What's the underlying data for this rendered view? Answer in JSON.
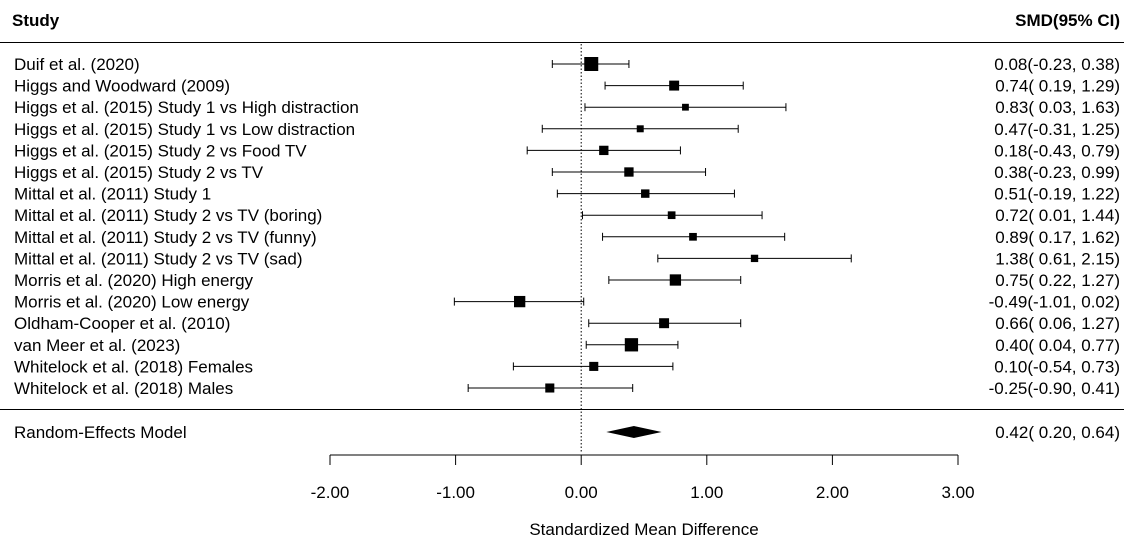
{
  "chart_data": {
    "type": "forest",
    "header": {
      "study": "Study",
      "effect": "SMD(95% CI)"
    },
    "xlabel": "Standardized Mean Difference",
    "xlim": [
      -2.0,
      3.0
    ],
    "ticks": [
      -2.0,
      -1.0,
      0.0,
      1.0,
      2.0,
      3.0
    ],
    "tick_labels": [
      "-2.00",
      "-1.00",
      "0.00",
      "1.00",
      "2.00",
      "3.00"
    ],
    "reference_line": 0,
    "studies": [
      {
        "label": "Duif et al. (2020)",
        "estimate": 0.08,
        "lower": -0.23,
        "upper": 0.38,
        "weight": 1.0,
        "ci_text": "0.08(-0.23, 0.38)"
      },
      {
        "label": "Higgs and Woodward (2009)",
        "estimate": 0.74,
        "lower": 0.19,
        "upper": 1.29,
        "weight": 0.55,
        "ci_text": "0.74( 0.19, 1.29)"
      },
      {
        "label": "Higgs et al. (2015) Study 1 vs High distraction",
        "estimate": 0.83,
        "lower": 0.03,
        "upper": 1.63,
        "weight": 0.2,
        "ci_text": "0.83( 0.03, 1.63)"
      },
      {
        "label": "Higgs et al. (2015) Study 1 vs Low distraction",
        "estimate": 0.47,
        "lower": -0.31,
        "upper": 1.25,
        "weight": 0.22,
        "ci_text": "0.47(-0.31, 1.25)"
      },
      {
        "label": "Higgs et al. (2015) Study 2 vs Food TV",
        "estimate": 0.18,
        "lower": -0.43,
        "upper": 0.79,
        "weight": 0.48,
        "ci_text": "0.18(-0.43, 0.79)"
      },
      {
        "label": "Higgs et al. (2015) Study 2 vs TV",
        "estimate": 0.38,
        "lower": -0.23,
        "upper": 0.99,
        "weight": 0.48,
        "ci_text": "0.38(-0.23, 0.99)"
      },
      {
        "label": "Mittal et al. (2011) Study 1",
        "estimate": 0.51,
        "lower": -0.19,
        "upper": 1.22,
        "weight": 0.38,
        "ci_text": "0.51(-0.19, 1.22)"
      },
      {
        "label": "Mittal et al. (2011) Study 2 vs TV (boring)",
        "estimate": 0.72,
        "lower": 0.01,
        "upper": 1.44,
        "weight": 0.3,
        "ci_text": "0.72( 0.01, 1.44)"
      },
      {
        "label": "Mittal et al. (2011) Study 2 vs TV (funny)",
        "estimate": 0.89,
        "lower": 0.17,
        "upper": 1.62,
        "weight": 0.3,
        "ci_text": "0.89( 0.17, 1.62)"
      },
      {
        "label": "Mittal et al. (2011) Study 2 vs TV (sad)",
        "estimate": 1.38,
        "lower": 0.61,
        "upper": 2.15,
        "weight": 0.26,
        "ci_text": "1.38( 0.61, 2.15)"
      },
      {
        "label": "Morris et al. (2020) High energy",
        "estimate": 0.75,
        "lower": 0.22,
        "upper": 1.27,
        "weight": 0.7,
        "ci_text": "0.75( 0.22, 1.27)"
      },
      {
        "label": "Morris et al. (2020) Low energy",
        "estimate": -0.49,
        "lower": -1.01,
        "upper": 0.02,
        "weight": 0.7,
        "ci_text": "-0.49(-1.01, 0.02)"
      },
      {
        "label": "Oldham-Cooper et al. (2010)",
        "estimate": 0.66,
        "lower": 0.06,
        "upper": 1.27,
        "weight": 0.55,
        "ci_text": "0.66( 0.06, 1.27)"
      },
      {
        "label": "van Meer et al. (2023)",
        "estimate": 0.4,
        "lower": 0.04,
        "upper": 0.77,
        "weight": 0.92,
        "ci_text": "0.40( 0.04, 0.77)"
      },
      {
        "label": "Whitelock et al. (2018) Females",
        "estimate": 0.1,
        "lower": -0.54,
        "upper": 0.73,
        "weight": 0.45,
        "ci_text": "0.10(-0.54, 0.73)"
      },
      {
        "label": "Whitelock et al. (2018) Males",
        "estimate": -0.25,
        "lower": -0.9,
        "upper": 0.41,
        "weight": 0.45,
        "ci_text": "-0.25(-0.90, 0.41)"
      }
    ],
    "summary": {
      "label": "Random-Effects Model",
      "estimate": 0.42,
      "lower": 0.2,
      "upper": 0.64,
      "ci_text": "0.42( 0.20, 0.64)"
    }
  }
}
